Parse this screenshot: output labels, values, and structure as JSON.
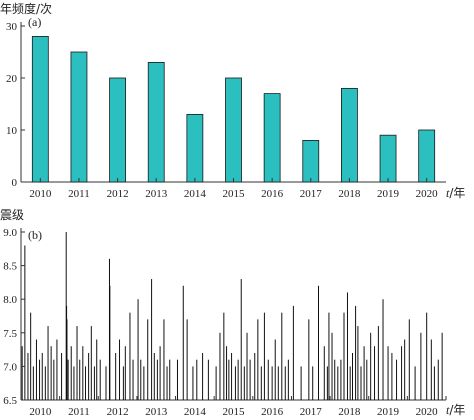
{
  "chart_data": [
    {
      "panel_label": "(a)",
      "type": "bar",
      "ylabel": "年频度/次",
      "xlabel_var": "t",
      "xlabel_unit": "/年",
      "categories": [
        "2010",
        "2011",
        "2012",
        "2013",
        "2014",
        "2015",
        "2016",
        "2017",
        "2018",
        "2019",
        "2020"
      ],
      "values": [
        28,
        25,
        20,
        23,
        13,
        20,
        17,
        8,
        18,
        9,
        10
      ],
      "ylim": [
        0,
        30
      ],
      "yticks": [
        "0",
        "10",
        "20",
        "30"
      ],
      "bar_color": "#2bbfc0",
      "grid": false
    },
    {
      "panel_label": "(b)",
      "type": "bar",
      "subtype": "magnitude-time stem plot",
      "ylabel": "震级",
      "xlabel_var": "t",
      "xlabel_unit": "/年",
      "xlim": [
        2010,
        2021
      ],
      "xticks": [
        "2010",
        "2011",
        "2012",
        "2013",
        "2014",
        "2015",
        "2016",
        "2017",
        "2018",
        "2019",
        "2020"
      ],
      "ylim": [
        6.5,
        9.0
      ],
      "yticks": [
        "6.5",
        "7.0",
        "7.5",
        "8.0",
        "8.5",
        "9.0"
      ],
      "line_color": "#111111",
      "grid": false,
      "events": [
        {
          "t": 2010.03,
          "m": 7.3
        },
        {
          "t": 2010.1,
          "m": 8.8
        },
        {
          "t": 2010.18,
          "m": 7.2
        },
        {
          "t": 2010.25,
          "m": 7.8
        },
        {
          "t": 2010.32,
          "m": 7.0
        },
        {
          "t": 2010.4,
          "m": 7.4
        },
        {
          "t": 2010.48,
          "m": 7.1
        },
        {
          "t": 2010.55,
          "m": 7.2
        },
        {
          "t": 2010.63,
          "m": 7.0
        },
        {
          "t": 2010.7,
          "m": 7.6
        },
        {
          "t": 2010.78,
          "m": 7.3
        },
        {
          "t": 2010.85,
          "m": 7.1
        },
        {
          "t": 2010.93,
          "m": 7.4
        },
        {
          "t": 2011.05,
          "m": 7.2
        },
        {
          "t": 2011.17,
          "m": 9.0
        },
        {
          "t": 2011.18,
          "m": 7.9
        },
        {
          "t": 2011.19,
          "m": 7.7
        },
        {
          "t": 2011.22,
          "m": 7.1
        },
        {
          "t": 2011.3,
          "m": 7.3
        },
        {
          "t": 2011.37,
          "m": 7.0
        },
        {
          "t": 2011.45,
          "m": 7.6
        },
        {
          "t": 2011.52,
          "m": 7.1
        },
        {
          "t": 2011.6,
          "m": 7.3
        },
        {
          "t": 2011.67,
          "m": 7.0
        },
        {
          "t": 2011.75,
          "m": 7.2
        },
        {
          "t": 2011.82,
          "m": 7.6
        },
        {
          "t": 2011.9,
          "m": 7.0
        },
        {
          "t": 2011.96,
          "m": 7.4
        },
        {
          "t": 2012.05,
          "m": 7.1
        },
        {
          "t": 2012.2,
          "m": 7.0
        },
        {
          "t": 2012.29,
          "m": 8.6
        },
        {
          "t": 2012.3,
          "m": 8.2
        },
        {
          "t": 2012.45,
          "m": 7.2
        },
        {
          "t": 2012.55,
          "m": 7.4
        },
        {
          "t": 2012.65,
          "m": 7.0
        },
        {
          "t": 2012.7,
          "m": 7.3
        },
        {
          "t": 2012.82,
          "m": 7.8
        },
        {
          "t": 2012.9,
          "m": 7.1
        },
        {
          "t": 2013.03,
          "m": 8.0
        },
        {
          "t": 2013.1,
          "m": 7.1
        },
        {
          "t": 2013.18,
          "m": 7.0
        },
        {
          "t": 2013.28,
          "m": 7.7
        },
        {
          "t": 2013.38,
          "m": 8.3
        },
        {
          "t": 2013.45,
          "m": 7.2
        },
        {
          "t": 2013.53,
          "m": 7.1
        },
        {
          "t": 2013.6,
          "m": 7.3
        },
        {
          "t": 2013.7,
          "m": 7.7
        },
        {
          "t": 2013.78,
          "m": 7.0
        },
        {
          "t": 2013.85,
          "m": 7.1
        },
        {
          "t": 2014.05,
          "m": 7.1
        },
        {
          "t": 2014.2,
          "m": 8.2
        },
        {
          "t": 2014.3,
          "m": 7.7
        },
        {
          "t": 2014.45,
          "m": 7.0
        },
        {
          "t": 2014.55,
          "m": 7.1
        },
        {
          "t": 2014.7,
          "m": 7.2
        },
        {
          "t": 2014.85,
          "m": 7.1
        },
        {
          "t": 2015.05,
          "m": 7.0
        },
        {
          "t": 2015.15,
          "m": 7.5
        },
        {
          "t": 2015.25,
          "m": 7.8
        },
        {
          "t": 2015.32,
          "m": 7.3
        },
        {
          "t": 2015.38,
          "m": 7.1
        },
        {
          "t": 2015.45,
          "m": 7.2
        },
        {
          "t": 2015.55,
          "m": 7.0
        },
        {
          "t": 2015.62,
          "m": 7.1
        },
        {
          "t": 2015.7,
          "m": 8.3
        },
        {
          "t": 2015.78,
          "m": 7.0
        },
        {
          "t": 2015.85,
          "m": 7.5
        },
        {
          "t": 2015.93,
          "m": 7.1
        },
        {
          "t": 2016.05,
          "m": 7.2
        },
        {
          "t": 2016.13,
          "m": 7.7
        },
        {
          "t": 2016.22,
          "m": 7.0
        },
        {
          "t": 2016.3,
          "m": 7.8
        },
        {
          "t": 2016.4,
          "m": 7.1
        },
        {
          "t": 2016.5,
          "m": 7.0
        },
        {
          "t": 2016.58,
          "m": 7.4
        },
        {
          "t": 2016.66,
          "m": 7.0
        },
        {
          "t": 2016.75,
          "m": 7.8
        },
        {
          "t": 2016.84,
          "m": 7.0
        },
        {
          "t": 2016.92,
          "m": 7.1
        },
        {
          "t": 2017.05,
          "m": 7.9
        },
        {
          "t": 2017.25,
          "m": 7.0
        },
        {
          "t": 2017.45,
          "m": 7.7
        },
        {
          "t": 2017.55,
          "m": 7.0
        },
        {
          "t": 2017.7,
          "m": 8.2
        },
        {
          "t": 2017.85,
          "m": 7.3
        },
        {
          "t": 2017.93,
          "m": 7.0
        },
        {
          "t": 2017.97,
          "m": 7.8
        },
        {
          "t": 2018.05,
          "m": 7.5
        },
        {
          "t": 2018.12,
          "m": 7.1
        },
        {
          "t": 2018.2,
          "m": 7.0
        },
        {
          "t": 2018.28,
          "m": 7.1
        },
        {
          "t": 2018.36,
          "m": 7.8
        },
        {
          "t": 2018.45,
          "m": 8.1
        },
        {
          "t": 2018.52,
          "m": 7.0
        },
        {
          "t": 2018.58,
          "m": 7.2
        },
        {
          "t": 2018.66,
          "m": 7.9
        },
        {
          "t": 2018.72,
          "m": 7.6
        },
        {
          "t": 2018.8,
          "m": 7.0
        },
        {
          "t": 2018.88,
          "m": 7.3
        },
        {
          "t": 2018.95,
          "m": 7.1
        },
        {
          "t": 2019.05,
          "m": 7.5
        },
        {
          "t": 2019.15,
          "m": 7.3
        },
        {
          "t": 2019.25,
          "m": 7.6
        },
        {
          "t": 2019.37,
          "m": 8.0
        },
        {
          "t": 2019.5,
          "m": 7.3
        },
        {
          "t": 2019.6,
          "m": 7.2
        },
        {
          "t": 2019.72,
          "m": 7.1
        },
        {
          "t": 2019.85,
          "m": 7.3
        },
        {
          "t": 2019.93,
          "m": 7.4
        },
        {
          "t": 2020.05,
          "m": 7.7
        },
        {
          "t": 2020.2,
          "m": 7.0
        },
        {
          "t": 2020.35,
          "m": 7.5
        },
        {
          "t": 2020.5,
          "m": 7.8
        },
        {
          "t": 2020.62,
          "m": 7.4
        },
        {
          "t": 2020.7,
          "m": 7.0
        },
        {
          "t": 2020.8,
          "m": 7.1
        },
        {
          "t": 2020.9,
          "m": 7.5
        }
      ]
    }
  ]
}
